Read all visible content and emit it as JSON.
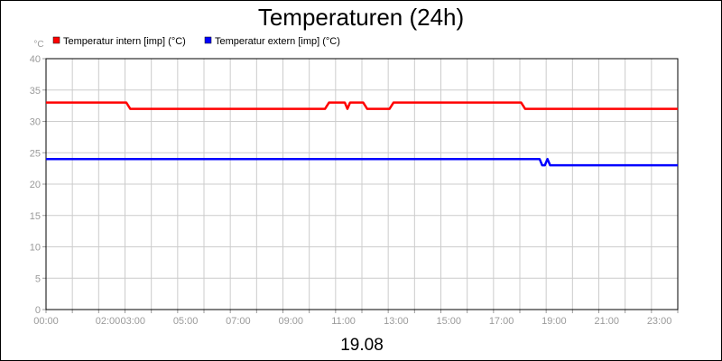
{
  "chart_data": {
    "type": "line",
    "title": "Temperaturen (24h)",
    "subtitle": "19.08",
    "ylabel": "°C",
    "ylim": [
      0,
      40
    ],
    "yticks": [
      0,
      5,
      10,
      15,
      20,
      25,
      30,
      35,
      40
    ],
    "xlim": [
      0,
      24
    ],
    "xticks": [
      {
        "x": 0,
        "label": "00:00"
      },
      {
        "x": 2.35,
        "label": "02:00"
      },
      {
        "x": 3.3,
        "label": "03:00"
      },
      {
        "x": 5.3,
        "label": "05:00"
      },
      {
        "x": 7.3,
        "label": "07:00"
      },
      {
        "x": 9.3,
        "label": "09:00"
      },
      {
        "x": 11.3,
        "label": "11:00"
      },
      {
        "x": 13.3,
        "label": "13:00"
      },
      {
        "x": 15.3,
        "label": "15:00"
      },
      {
        "x": 17.3,
        "label": "17:00"
      },
      {
        "x": 19.3,
        "label": "19:00"
      },
      {
        "x": 21.3,
        "label": "21:00"
      },
      {
        "x": 23.3,
        "label": "23:00"
      }
    ],
    "grid": true,
    "legend_position": "top-left",
    "series": [
      {
        "name": "Temperatur intern [imp] (°C)",
        "color": "#ff0000",
        "points": [
          [
            0,
            33
          ],
          [
            3.05,
            33
          ],
          [
            3.2,
            32
          ],
          [
            10.6,
            32
          ],
          [
            10.75,
            33
          ],
          [
            11.35,
            33
          ],
          [
            11.45,
            32
          ],
          [
            11.55,
            33
          ],
          [
            12.05,
            33
          ],
          [
            12.2,
            32
          ],
          [
            13.05,
            32
          ],
          [
            13.2,
            33
          ],
          [
            18.05,
            33
          ],
          [
            18.2,
            32
          ],
          [
            24,
            32
          ]
        ]
      },
      {
        "name": "Temperatur extern [imp] (°C)",
        "color": "#0000ff",
        "points": [
          [
            0,
            24
          ],
          [
            18.75,
            24
          ],
          [
            18.85,
            23
          ],
          [
            18.95,
            23
          ],
          [
            19.05,
            24
          ],
          [
            19.15,
            23
          ],
          [
            24,
            23
          ]
        ]
      }
    ]
  }
}
